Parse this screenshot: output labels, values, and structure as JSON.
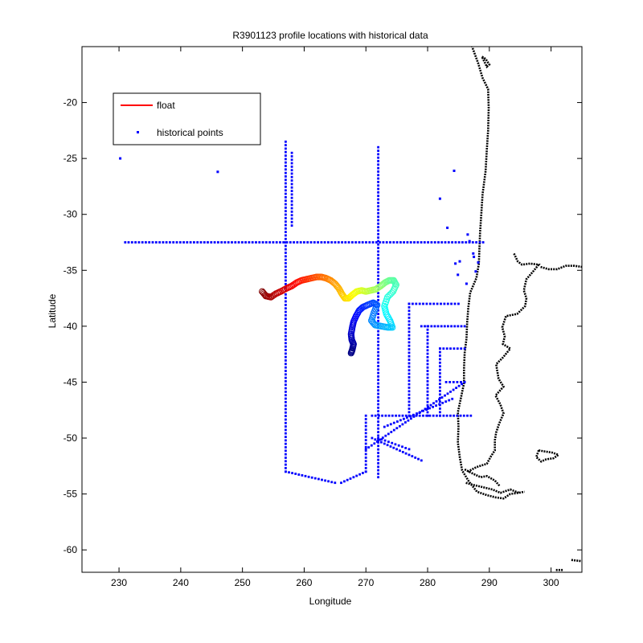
{
  "chart_data": {
    "type": "scatter",
    "title": "R3901123 profile locations with historical data",
    "xlabel": "Longitude",
    "ylabel": "Latitude",
    "xlim": [
      224,
      305
    ],
    "ylim": [
      -62,
      -15
    ],
    "xticks": [
      230,
      240,
      250,
      260,
      270,
      280,
      290,
      300
    ],
    "yticks": [
      -60,
      -55,
      -50,
      -45,
      -40,
      -35,
      -30,
      -25,
      -20
    ],
    "legend": {
      "placement": "top-left",
      "entries": [
        {
          "label": "float",
          "color": "#ff0000",
          "marker": "line"
        },
        {
          "label": "historical points",
          "color": "#0000ff",
          "marker": "dot"
        }
      ]
    },
    "colors": {
      "historical": "#0000ff",
      "coast": "#000000"
    },
    "historical_segments": [
      {
        "from": [
          231,
          -32.5
        ],
        "to": [
          289,
          -32.5
        ]
      },
      {
        "from": [
          257,
          -23.5
        ],
        "to": [
          257,
          -53
        ]
      },
      {
        "from": [
          272,
          -24
        ],
        "to": [
          272,
          -53.5
        ]
      },
      {
        "from": [
          258,
          -24.5
        ],
        "to": [
          258,
          -31
        ]
      },
      {
        "from": [
          257,
          -53
        ],
        "to": [
          265,
          -54
        ]
      },
      {
        "from": [
          266,
          -54
        ],
        "to": [
          270,
          -53
        ]
      },
      {
        "from": [
          270,
          -53
        ],
        "to": [
          270,
          -48
        ]
      },
      {
        "from": [
          271,
          -48
        ],
        "to": [
          287,
          -48
        ]
      },
      {
        "from": [
          277,
          -38
        ],
        "to": [
          277,
          -48
        ]
      },
      {
        "from": [
          277,
          -38
        ],
        "to": [
          285,
          -38
        ]
      },
      {
        "from": [
          279,
          -40
        ],
        "to": [
          286,
          -40
        ]
      },
      {
        "from": [
          280,
          -40
        ],
        "to": [
          280,
          -48
        ]
      },
      {
        "from": [
          282,
          -42
        ],
        "to": [
          286,
          -42
        ]
      },
      {
        "from": [
          282,
          -42
        ],
        "to": [
          282,
          -48
        ]
      },
      {
        "from": [
          283,
          -45
        ],
        "to": [
          286,
          -45
        ]
      },
      {
        "from": [
          270,
          -51
        ],
        "to": [
          286,
          -45
        ]
      },
      {
        "from": [
          273,
          -49
        ],
        "to": [
          284,
          -46.5
        ]
      },
      {
        "from": [
          271,
          -50
        ],
        "to": [
          279,
          -52
        ]
      },
      {
        "from": [
          272,
          -50
        ],
        "to": [
          277,
          -51
        ]
      }
    ],
    "historical_points": [
      [
        230.2,
        -25
      ],
      [
        246,
        -26.2
      ],
      [
        284.3,
        -26.1
      ],
      [
        282,
        -28.6
      ],
      [
        286.5,
        -31.8
      ],
      [
        287.4,
        -33.5
      ],
      [
        288.2,
        -34.3
      ],
      [
        284.5,
        -34.4
      ],
      [
        285.2,
        -34.2
      ],
      [
        286.8,
        -32.4
      ],
      [
        287.8,
        -35.1
      ],
      [
        287.5,
        -33.8
      ],
      [
        283.2,
        -31.2
      ],
      [
        284.9,
        -35.4
      ],
      [
        286.3,
        -36.2
      ]
    ],
    "float_track": [
      [
        253.2,
        -36.9
      ],
      [
        253.8,
        -37.3
      ],
      [
        254.6,
        -37.4
      ],
      [
        255.4,
        -37.1
      ],
      [
        256.2,
        -36.9
      ],
      [
        257.2,
        -36.6
      ],
      [
        258,
        -36.4
      ],
      [
        258.8,
        -36.1
      ],
      [
        259.6,
        -35.9
      ],
      [
        260.4,
        -35.8
      ],
      [
        261.2,
        -35.7
      ],
      [
        262,
        -35.6
      ],
      [
        262.8,
        -35.6
      ],
      [
        263.5,
        -35.7
      ],
      [
        264.3,
        -35.9
      ],
      [
        265,
        -36.2
      ],
      [
        265.6,
        -36.6
      ],
      [
        266.1,
        -37.1
      ],
      [
        266.6,
        -37.5
      ],
      [
        267.2,
        -37.5
      ],
      [
        267.8,
        -37.2
      ],
      [
        268.5,
        -36.9
      ],
      [
        269.3,
        -36.8
      ],
      [
        270,
        -36.9
      ],
      [
        270.8,
        -36.8
      ],
      [
        271.6,
        -36.7
      ],
      [
        272.4,
        -36.4
      ],
      [
        273.1,
        -36.1
      ],
      [
        273.8,
        -35.9
      ],
      [
        274.5,
        -35.9
      ],
      [
        274.9,
        -36.3
      ],
      [
        274.4,
        -36.9
      ],
      [
        273.5,
        -37.4
      ],
      [
        273,
        -38.2
      ],
      [
        273.3,
        -38.9
      ],
      [
        273.9,
        -39.5
      ],
      [
        274.3,
        -40.1
      ],
      [
        273.5,
        -40.1
      ],
      [
        272.5,
        -40
      ],
      [
        271.5,
        -39.9
      ],
      [
        270.9,
        -39.5
      ],
      [
        271.3,
        -38.8
      ],
      [
        271.8,
        -38.1
      ],
      [
        271.2,
        -37.9
      ],
      [
        270.3,
        -38.1
      ],
      [
        269.5,
        -38.3
      ],
      [
        268.9,
        -38.6
      ],
      [
        268.4,
        -39.1
      ],
      [
        268,
        -39.6
      ],
      [
        267.8,
        -40.1
      ],
      [
        267.6,
        -40.7
      ],
      [
        267.7,
        -41.2
      ],
      [
        268,
        -41.6
      ],
      [
        267.8,
        -42.1
      ],
      [
        267.6,
        -42.4
      ]
    ],
    "coast_segments": [
      [
        [
          287,
          -14.7
        ],
        [
          288.2,
          -16.5
        ],
        [
          288.9,
          -17.8
        ],
        [
          289.8,
          -18.8
        ],
        [
          289.9,
          -20.5
        ],
        [
          289.8,
          -22.5
        ],
        [
          289.6,
          -24.2
        ],
        [
          289.4,
          -26.1
        ],
        [
          288.9,
          -28.2
        ],
        [
          288.7,
          -30
        ],
        [
          288.5,
          -31.6
        ],
        [
          288.4,
          -33
        ],
        [
          288.3,
          -34.4
        ],
        [
          287.9,
          -35.7
        ],
        [
          286.9,
          -37
        ],
        [
          286.6,
          -38.3
        ],
        [
          286.4,
          -39.7
        ],
        [
          286.3,
          -41.1
        ],
        [
          286,
          -42.4
        ],
        [
          285.9,
          -43.8
        ],
        [
          285.9,
          -45.1
        ],
        [
          285.4,
          -46.4
        ],
        [
          284.9,
          -47.7
        ],
        [
          285,
          -49
        ],
        [
          284.9,
          -50.4
        ],
        [
          285.2,
          -51.7
        ],
        [
          285.6,
          -52.9
        ],
        [
          286.7,
          -53.9
        ],
        [
          288,
          -54.8
        ],
        [
          289.6,
          -55.1
        ],
        [
          291,
          -55.3
        ],
        [
          292.3,
          -55.4
        ],
        [
          293.4,
          -55
        ],
        [
          294.7,
          -54.9
        ],
        [
          295.7,
          -54.8
        ]
      ],
      [
        [
          294,
          -33.5
        ],
        [
          294.6,
          -34.2
        ],
        [
          295.3,
          -34.5
        ],
        [
          296.6,
          -34.4
        ],
        [
          298,
          -34.5
        ],
        [
          297.1,
          -35.1
        ],
        [
          296,
          -35.8
        ],
        [
          295.6,
          -36.8
        ],
        [
          296,
          -37.5
        ],
        [
          295.8,
          -38.2
        ],
        [
          294.5,
          -38.9
        ],
        [
          292.7,
          -39.1
        ],
        [
          292.1,
          -40.1
        ],
        [
          292.5,
          -40.9
        ],
        [
          292.2,
          -41.6
        ],
        [
          293.4,
          -42
        ],
        [
          292.2,
          -42.8
        ],
        [
          291.1,
          -43.4
        ],
        [
          291.5,
          -44.7
        ],
        [
          292.3,
          -45.4
        ],
        [
          291,
          -46.2
        ],
        [
          291.8,
          -47
        ],
        [
          292.3,
          -47.8
        ],
        [
          291.6,
          -48.7
        ],
        [
          291.1,
          -49.5
        ],
        [
          290.9,
          -50.2
        ],
        [
          290.9,
          -51.1
        ],
        [
          290.3,
          -51.6
        ],
        [
          289.6,
          -52.3
        ],
        [
          287.9,
          -52.6
        ],
        [
          286.5,
          -53
        ]
      ],
      [
        [
          298.3,
          -34.7
        ],
        [
          299.6,
          -34.9
        ],
        [
          301,
          -34.9
        ],
        [
          302.4,
          -34.6
        ],
        [
          303.8,
          -34.6
        ],
        [
          305,
          -34.7
        ]
      ],
      [
        [
          286.2,
          -54
        ],
        [
          287.5,
          -54.2
        ],
        [
          289,
          -54.4
        ],
        [
          290.5,
          -54.6
        ],
        [
          291.8,
          -54.9
        ],
        [
          293.4,
          -54.6
        ],
        [
          294.8,
          -54.9
        ]
      ],
      [
        [
          286,
          -52.8
        ],
        [
          287.4,
          -53.2
        ],
        [
          288.6,
          -53.5
        ],
        [
          289.6,
          -53.4
        ],
        [
          290.9,
          -53.8
        ],
        [
          291.7,
          -54.3
        ]
      ],
      [
        [
          298,
          -51.1
        ],
        [
          299,
          -51.2
        ],
        [
          300.2,
          -51.3
        ],
        [
          301.2,
          -51.5
        ],
        [
          300.4,
          -51.8
        ],
        [
          299.2,
          -51.9
        ],
        [
          298.4,
          -52.1
        ],
        [
          297.6,
          -51.7
        ],
        [
          298,
          -51.1
        ]
      ],
      [
        [
          288.8,
          -15.9
        ],
        [
          289.4,
          -16.1
        ],
        [
          290,
          -16.6
        ],
        [
          289.6,
          -16.8
        ],
        [
          288.8,
          -15.9
        ]
      ],
      [
        [
          300.8,
          -61.8
        ],
        [
          302,
          -61.8
        ]
      ],
      [
        [
          303.3,
          -60.9
        ],
        [
          304.8,
          -61
        ]
      ]
    ]
  }
}
